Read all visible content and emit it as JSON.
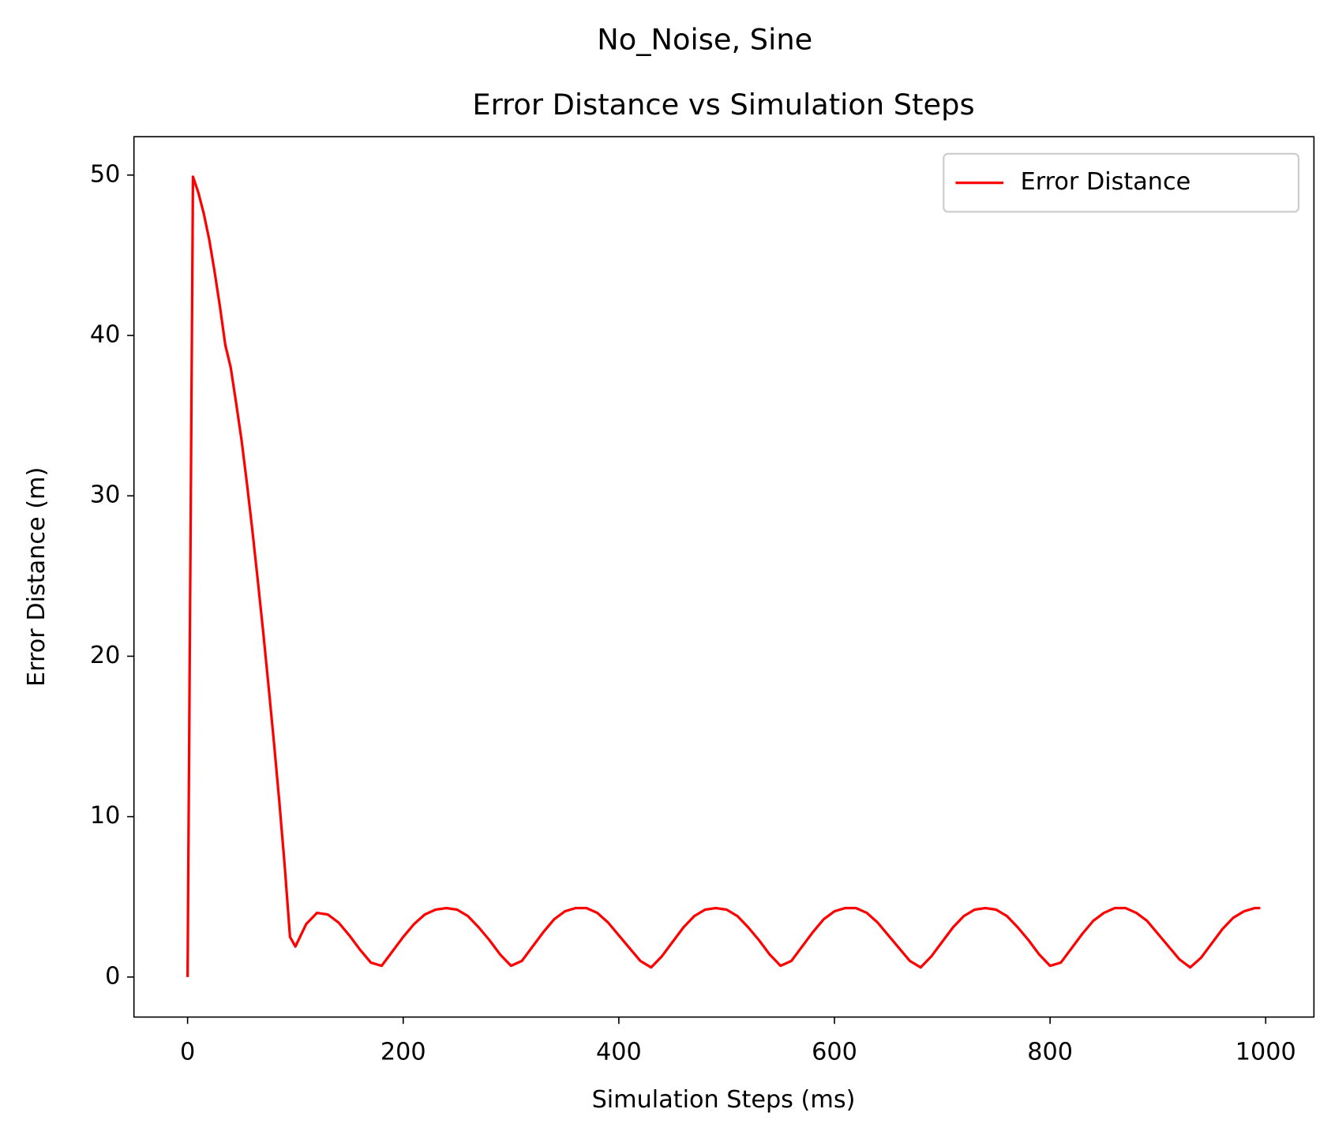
{
  "chart_data": {
    "type": "line",
    "suptitle": "No_Noise, Sine",
    "title": "Error Distance vs Simulation Steps",
    "xlabel": "Simulation Steps (ms)",
    "ylabel": "Error Distance (m)",
    "x": [
      0,
      5,
      10,
      15,
      20,
      25,
      30,
      35,
      40,
      45,
      50,
      55,
      60,
      65,
      70,
      75,
      80,
      85,
      90,
      95,
      100,
      110,
      120,
      130,
      140,
      150,
      160,
      170,
      180,
      190,
      200,
      210,
      220,
      230,
      240,
      250,
      260,
      270,
      280,
      290,
      300,
      310,
      320,
      330,
      340,
      350,
      360,
      370,
      380,
      390,
      400,
      410,
      420,
      430,
      440,
      450,
      460,
      470,
      480,
      490,
      500,
      510,
      520,
      530,
      540,
      550,
      560,
      570,
      580,
      590,
      600,
      610,
      620,
      630,
      640,
      650,
      660,
      670,
      680,
      690,
      700,
      710,
      720,
      730,
      740,
      750,
      760,
      770,
      780,
      790,
      800,
      810,
      820,
      830,
      840,
      850,
      860,
      870,
      880,
      890,
      900,
      910,
      920,
      930,
      940,
      950,
      960,
      970,
      980,
      990,
      995
    ],
    "series": [
      {
        "name": "Error Distance",
        "color": "#ff0000",
        "values": [
          0,
          49.9,
          48.9,
          47.6,
          46.0,
          44.0,
          41.8,
          39.4,
          38.0,
          35.8,
          33.5,
          30.8,
          27.9,
          24.8,
          21.6,
          18.2,
          14.7,
          11.0,
          7.0,
          2.5,
          1.9,
          3.3,
          4.0,
          3.9,
          3.4,
          2.6,
          1.7,
          0.9,
          0.7,
          1.6,
          2.5,
          3.3,
          3.9,
          4.2,
          4.3,
          4.2,
          3.8,
          3.1,
          2.3,
          1.4,
          0.7,
          1.0,
          1.9,
          2.8,
          3.6,
          4.1,
          4.3,
          4.3,
          4.0,
          3.4,
          2.6,
          1.8,
          1.0,
          0.6,
          1.3,
          2.2,
          3.1,
          3.8,
          4.2,
          4.3,
          4.2,
          3.8,
          3.1,
          2.3,
          1.4,
          0.7,
          1.0,
          1.9,
          2.8,
          3.6,
          4.1,
          4.3,
          4.3,
          4.0,
          3.4,
          2.6,
          1.8,
          1.0,
          0.6,
          1.3,
          2.2,
          3.1,
          3.8,
          4.2,
          4.3,
          4.2,
          3.8,
          3.1,
          2.3,
          1.4,
          0.7,
          0.9,
          1.8,
          2.7,
          3.5,
          4.0,
          4.3,
          4.3,
          4.0,
          3.5,
          2.7,
          1.9,
          1.1,
          0.6,
          1.2,
          2.1,
          3.0,
          3.7,
          4.1,
          4.3,
          4.3
        ]
      }
    ],
    "xlim": [
      -49.75,
      1044.75
    ],
    "xticks": [
      0,
      200,
      400,
      600,
      800,
      1000
    ],
    "ylim": [
      -2.495,
      52.39
    ],
    "yticks": [
      0,
      10,
      20,
      30,
      40,
      50
    ],
    "legend": "upper right"
  }
}
